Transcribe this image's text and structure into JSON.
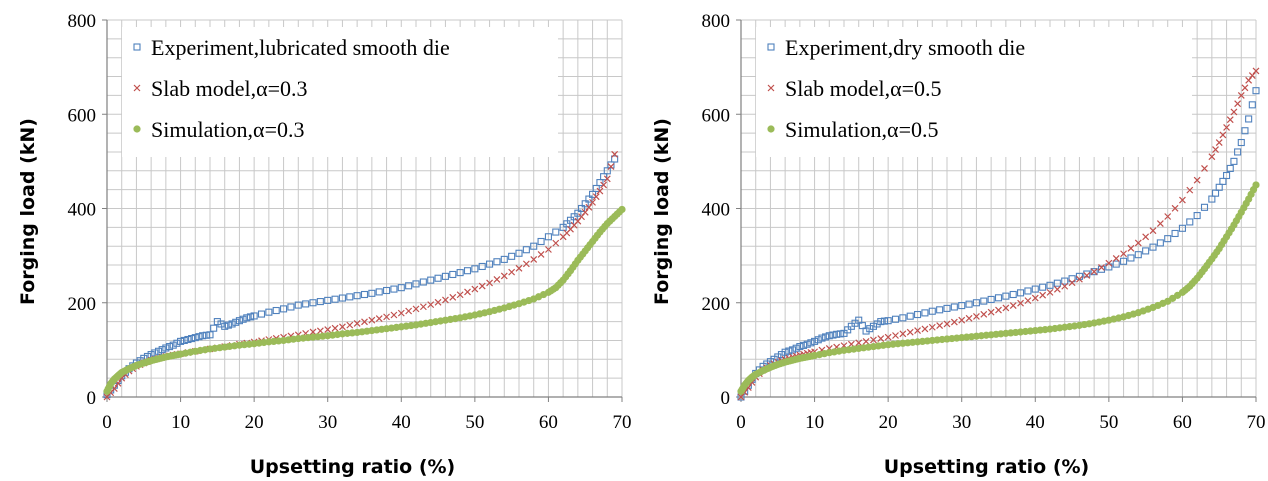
{
  "colors": {
    "experiment": "#4f81bd",
    "slab": "#c0504d",
    "simulation": "#9bbb59",
    "grid": "#c8c8c8",
    "axis": "#808080"
  },
  "chart_data": [
    {
      "type": "scatter",
      "xlabel": "Upsetting ratio (%)",
      "ylabel": "Forging load (kN)",
      "xlim": [
        0,
        70
      ],
      "ylim": [
        0,
        800
      ],
      "xticks": [
        0,
        10,
        20,
        30,
        40,
        50,
        60,
        70
      ],
      "yticks": [
        0,
        200,
        400,
        600,
        800
      ],
      "grid": true,
      "legend_position": "top-right",
      "series": [
        {
          "name": "Experiment,lubricated smooth die",
          "marker": "square-open",
          "color": "#4f81bd",
          "x": [
            0,
            1,
            2,
            3,
            4,
            5,
            6,
            7,
            8,
            9,
            10,
            11,
            12,
            13,
            14,
            15,
            16,
            17,
            18,
            19,
            20,
            22,
            24,
            26,
            28,
            30,
            32,
            34,
            36,
            38,
            40,
            42,
            44,
            46,
            48,
            50,
            52,
            54,
            56,
            58,
            60,
            62,
            63,
            64,
            65,
            66,
            67,
            68,
            69
          ],
          "y": [
            5,
            25,
            45,
            60,
            72,
            82,
            90,
            97,
            104,
            110,
            118,
            122,
            126,
            130,
            132,
            160,
            150,
            155,
            162,
            168,
            172,
            180,
            187,
            195,
            200,
            205,
            210,
            215,
            220,
            226,
            232,
            240,
            248,
            256,
            264,
            272,
            282,
            292,
            305,
            320,
            340,
            360,
            375,
            390,
            410,
            430,
            455,
            480,
            505
          ]
        },
        {
          "name": "Slab model,α=0.3",
          "marker": "x",
          "color": "#c0504d",
          "x": [
            0,
            1,
            2,
            3,
            4,
            5,
            6,
            7,
            8,
            9,
            10,
            12,
            14,
            16,
            18,
            20,
            22,
            24,
            26,
            28,
            30,
            32,
            34,
            36,
            38,
            40,
            42,
            44,
            46,
            48,
            50,
            52,
            54,
            56,
            58,
            60,
            62,
            63,
            64,
            65,
            66,
            67,
            68,
            69
          ],
          "y": [
            0,
            18,
            40,
            55,
            65,
            72,
            78,
            82,
            86,
            89,
            92,
            97,
            102,
            107,
            112,
            117,
            122,
            127,
            132,
            138,
            143,
            149,
            156,
            163,
            170,
            178,
            187,
            196,
            206,
            217,
            229,
            242,
            257,
            273,
            292,
            313,
            340,
            356,
            373,
            392,
            413,
            437,
            463,
            515
          ]
        },
        {
          "name": "Simulation,α=0.3",
          "marker": "circle-filled",
          "color": "#9bbb59",
          "x": [
            0,
            0.5,
            1,
            1.5,
            2,
            3,
            4,
            5,
            6,
            7,
            8,
            9,
            10,
            12,
            14,
            16,
            18,
            20,
            22,
            24,
            26,
            28,
            30,
            32,
            34,
            36,
            38,
            40,
            42,
            44,
            46,
            48,
            50,
            52,
            54,
            56,
            58,
            60,
            61,
            62,
            63,
            64,
            65,
            66,
            67,
            68,
            69,
            70
          ],
          "y": [
            12,
            28,
            38,
            45,
            52,
            60,
            67,
            72,
            77,
            81,
            85,
            88,
            91,
            97,
            102,
            106,
            110,
            113,
            117,
            120,
            124,
            127,
            130,
            134,
            137,
            141,
            145,
            149,
            153,
            158,
            163,
            168,
            174,
            181,
            189,
            198,
            208,
            222,
            232,
            248,
            268,
            290,
            310,
            330,
            350,
            368,
            383,
            398
          ]
        }
      ]
    },
    {
      "type": "scatter",
      "xlabel": "Upsetting ratio (%)",
      "ylabel": "Forging load (kN)",
      "xlim": [
        0,
        70
      ],
      "ylim": [
        0,
        800
      ],
      "xticks": [
        0,
        10,
        20,
        30,
        40,
        50,
        60,
        70
      ],
      "yticks": [
        0,
        200,
        400,
        600,
        800
      ],
      "grid": true,
      "legend_position": "top-right",
      "series": [
        {
          "name": "Experiment,dry smooth die",
          "marker": "square-open",
          "color": "#4f81bd",
          "x": [
            0,
            1,
            2,
            3,
            4,
            5,
            6,
            7,
            8,
            9,
            10,
            11,
            12,
            13,
            14,
            15,
            16,
            17,
            18,
            19,
            20,
            22,
            24,
            26,
            28,
            30,
            32,
            34,
            36,
            38,
            40,
            42,
            44,
            46,
            48,
            50,
            52,
            54,
            56,
            58,
            60,
            62,
            64,
            65,
            66,
            67,
            68,
            69,
            70
          ],
          "y": [
            0,
            25,
            50,
            65,
            75,
            85,
            95,
            100,
            107,
            112,
            118,
            125,
            130,
            133,
            135,
            150,
            163,
            140,
            150,
            160,
            162,
            168,
            175,
            182,
            188,
            194,
            200,
            207,
            214,
            221,
            229,
            237,
            246,
            256,
            266,
            276,
            288,
            302,
            318,
            336,
            358,
            385,
            420,
            445,
            470,
            500,
            540,
            590,
            650
          ]
        },
        {
          "name": "Slab model,α=0.5",
          "marker": "x",
          "color": "#c0504d",
          "x": [
            0,
            1,
            2,
            3,
            4,
            5,
            6,
            7,
            8,
            9,
            10,
            12,
            14,
            16,
            18,
            20,
            22,
            24,
            26,
            28,
            30,
            32,
            34,
            36,
            38,
            40,
            42,
            44,
            46,
            48,
            50,
            52,
            54,
            56,
            58,
            60,
            62,
            64,
            65,
            66,
            67,
            68,
            69,
            70
          ],
          "y": [
            0,
            20,
            42,
            57,
            67,
            74,
            80,
            85,
            89,
            93,
            96,
            103,
            109,
            115,
            121,
            127,
            134,
            141,
            148,
            155,
            163,
            171,
            180,
            189,
            199,
            210,
            222,
            235,
            250,
            266,
            284,
            304,
            327,
            353,
            383,
            418,
            460,
            510,
            540,
            572,
            605,
            640,
            672,
            692
          ]
        },
        {
          "name": "Simulation,α=0.5",
          "marker": "circle-filled",
          "color": "#9bbb59",
          "x": [
            0,
            0.5,
            1,
            1.5,
            2,
            3,
            4,
            5,
            6,
            7,
            8,
            9,
            10,
            12,
            14,
            16,
            18,
            20,
            22,
            24,
            26,
            28,
            30,
            32,
            34,
            36,
            38,
            40,
            42,
            44,
            46,
            48,
            50,
            52,
            54,
            56,
            58,
            60,
            61,
            62,
            63,
            64,
            65,
            66,
            67,
            68,
            69,
            70
          ],
          "y": [
            12,
            25,
            35,
            42,
            48,
            56,
            63,
            69,
            74,
            78,
            82,
            85,
            88,
            94,
            99,
            103,
            107,
            111,
            114,
            117,
            120,
            123,
            126,
            129,
            132,
            135,
            138,
            141,
            144,
            148,
            152,
            157,
            163,
            170,
            179,
            190,
            203,
            222,
            235,
            252,
            272,
            293,
            315,
            340,
            365,
            392,
            420,
            450
          ]
        }
      ]
    }
  ]
}
